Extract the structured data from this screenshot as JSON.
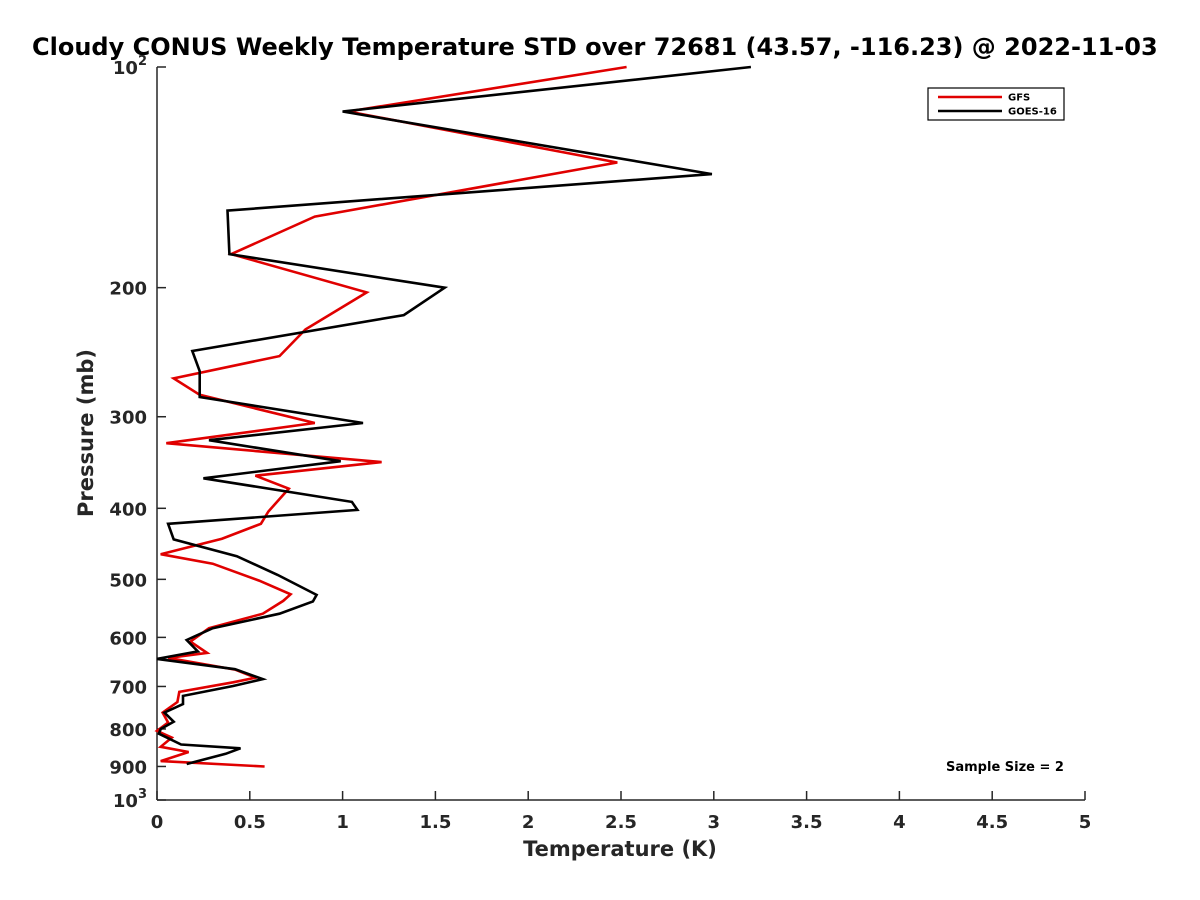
{
  "chart_data": {
    "type": "line",
    "title": "Cloudy CONUS Weekly Temperature STD over 72681 (43.57, -116.23) @ 2022-11-03",
    "xlabel": "Temperature (K)",
    "ylabel": "Pressure (mb)",
    "xlim": [
      0,
      5
    ],
    "ylim": [
      100,
      1000
    ],
    "y_scale": "log",
    "y_reversed": true,
    "x_ticks": [
      "0",
      "0.5",
      "1",
      "1.5",
      "2",
      "2.5",
      "3",
      "3.5",
      "4",
      "4.5",
      "5"
    ],
    "y_ticks": [
      {
        "value": 100,
        "label": "10",
        "sup": "2"
      },
      {
        "value": 200,
        "label": "200",
        "sup": ""
      },
      {
        "value": 300,
        "label": "300",
        "sup": ""
      },
      {
        "value": 400,
        "label": "400",
        "sup": ""
      },
      {
        "value": 500,
        "label": "500",
        "sup": ""
      },
      {
        "value": 600,
        "label": "600",
        "sup": ""
      },
      {
        "value": 700,
        "label": "700",
        "sup": ""
      },
      {
        "value": 800,
        "label": "800",
        "sup": ""
      },
      {
        "value": 900,
        "label": "900",
        "sup": ""
      },
      {
        "value": 1000,
        "label": "10",
        "sup": "3"
      }
    ],
    "grid": false,
    "legend_position": "top-right",
    "series": [
      {
        "name": "GFS",
        "color": "#e00000",
        "points": [
          [
            2.53,
            100
          ],
          [
            1.03,
            115
          ],
          [
            2.48,
            135
          ],
          [
            0.85,
            160
          ],
          [
            0.4,
            180
          ],
          [
            1.13,
            203
          ],
          [
            0.8,
            228
          ],
          [
            0.66,
            248
          ],
          [
            0.09,
            266
          ],
          [
            0.23,
            280
          ],
          [
            0.85,
            306
          ],
          [
            0.05,
            326
          ],
          [
            1.21,
            346
          ],
          [
            0.53,
            361
          ],
          [
            0.71,
            376
          ],
          [
            0.6,
            404
          ],
          [
            0.56,
            420
          ],
          [
            0.35,
            440
          ],
          [
            0.02,
            462
          ],
          [
            0.3,
            476
          ],
          [
            0.55,
            502
          ],
          [
            0.72,
            524
          ],
          [
            0.68,
            535
          ],
          [
            0.57,
            557
          ],
          [
            0.28,
            583
          ],
          [
            0.18,
            608
          ],
          [
            0.27,
            630
          ],
          [
            0.06,
            640
          ],
          [
            0.42,
            664
          ],
          [
            0.53,
            681
          ],
          [
            0.41,
            691
          ],
          [
            0.12,
            712
          ],
          [
            0.11,
            735
          ],
          [
            0.03,
            760
          ],
          [
            0.06,
            784
          ],
          [
            0.0,
            805
          ],
          [
            0.08,
            822
          ],
          [
            0.02,
            846
          ],
          [
            0.17,
            860
          ],
          [
            0.02,
            885
          ],
          [
            0.58,
            900
          ]
        ]
      },
      {
        "name": "GOES-16",
        "color": "#000000",
        "points": [
          [
            3.2,
            100
          ],
          [
            1.0,
            115
          ],
          [
            2.99,
            140
          ],
          [
            0.38,
            157
          ],
          [
            0.39,
            180
          ],
          [
            1.55,
            200
          ],
          [
            1.33,
            218
          ],
          [
            0.19,
            244
          ],
          [
            0.23,
            260
          ],
          [
            0.23,
            282
          ],
          [
            1.11,
            306
          ],
          [
            0.28,
            323
          ],
          [
            0.99,
            345
          ],
          [
            0.25,
            364
          ],
          [
            1.05,
            392
          ],
          [
            1.08,
            402
          ],
          [
            0.06,
            420
          ],
          [
            0.09,
            441
          ],
          [
            0.43,
            465
          ],
          [
            0.65,
            493
          ],
          [
            0.86,
            525
          ],
          [
            0.84,
            536
          ],
          [
            0.66,
            557
          ],
          [
            0.3,
            583
          ],
          [
            0.16,
            605
          ],
          [
            0.22,
            627
          ],
          [
            0.0,
            642
          ],
          [
            0.42,
            663
          ],
          [
            0.57,
            684
          ],
          [
            0.41,
            699
          ],
          [
            0.14,
            721
          ],
          [
            0.14,
            740
          ],
          [
            0.04,
            760
          ],
          [
            0.09,
            782
          ],
          [
            0.02,
            800
          ],
          [
            0.01,
            812
          ],
          [
            0.13,
            840
          ],
          [
            0.45,
            850
          ],
          [
            0.37,
            865
          ],
          [
            0.16,
            893
          ]
        ]
      }
    ],
    "annotations": [
      "Sample Size = 2"
    ]
  }
}
